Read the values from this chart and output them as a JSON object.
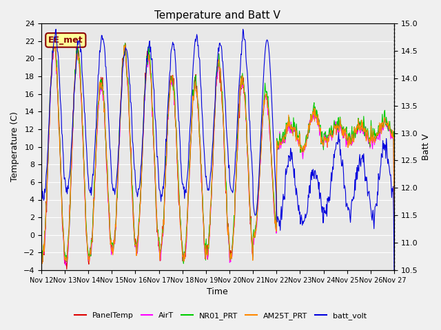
{
  "title": "Temperature and Batt V",
  "xlabel": "Time",
  "ylabel_left": "Temperature (C)",
  "ylabel_right": "Batt V",
  "ylim_left": [
    -4,
    24
  ],
  "ylim_right": [
    10.5,
    15.0
  ],
  "yticks_left": [
    -4,
    -2,
    0,
    2,
    4,
    6,
    8,
    10,
    12,
    14,
    16,
    18,
    20,
    22,
    24
  ],
  "yticks_right": [
    10.5,
    11.0,
    11.5,
    12.0,
    12.5,
    13.0,
    13.5,
    14.0,
    14.5,
    15.0
  ],
  "xtick_labels": [
    "Nov 12",
    "Nov 13",
    "Nov 14",
    "Nov 15",
    "Nov 16",
    "Nov 17",
    "Nov 18",
    "Nov 19",
    "Nov 20",
    "Nov 21",
    "Nov 22",
    "Nov 23",
    "Nov 24",
    "Nov 25",
    "Nov 26",
    "Nov 27"
  ],
  "colors": {
    "PanelTemp": "#dd0000",
    "AirT": "#ff00ff",
    "NR01_PRT": "#00cc00",
    "AM25T_PRT": "#ff8800",
    "batt_volt": "#0000dd"
  },
  "legend_label": "EE_met",
  "plot_bg_color": "#e8e8e8",
  "grid_color": "#ffffff",
  "n_days": 15,
  "samples_per_day": 48
}
